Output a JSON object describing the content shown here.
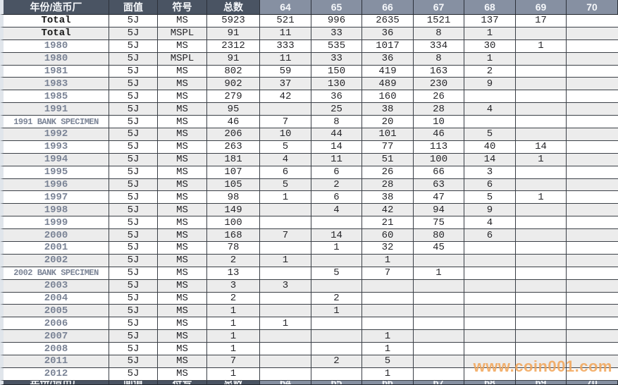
{
  "header": {
    "columns": [
      "年份/造币厂",
      "面值",
      "符号",
      "总数",
      "64",
      "65",
      "66",
      "67",
      "68",
      "69",
      "70"
    ]
  },
  "rows": [
    {
      "kind": "total",
      "cells": [
        "Total",
        "5J",
        "MS",
        "5923",
        "521",
        "996",
        "2635",
        "1521",
        "137",
        "17",
        ""
      ]
    },
    {
      "kind": "total",
      "cells": [
        "Total",
        "5J",
        "MSPL",
        "91",
        "11",
        "33",
        "36",
        "8",
        "1",
        "",
        ""
      ]
    },
    {
      "kind": "year",
      "cells": [
        "1980",
        "5J",
        "MS",
        "2312",
        "333",
        "535",
        "1017",
        "334",
        "30",
        "1",
        ""
      ]
    },
    {
      "kind": "year",
      "cells": [
        "1980",
        "5J",
        "MSPL",
        "91",
        "11",
        "33",
        "36",
        "8",
        "1",
        "",
        ""
      ]
    },
    {
      "kind": "year",
      "cells": [
        "1981",
        "5J",
        "MS",
        "802",
        "59",
        "150",
        "419",
        "163",
        "2",
        "",
        ""
      ]
    },
    {
      "kind": "year",
      "cells": [
        "1983",
        "5J",
        "MS",
        "902",
        "37",
        "130",
        "489",
        "230",
        "9",
        "",
        ""
      ]
    },
    {
      "kind": "year",
      "cells": [
        "1985",
        "5J",
        "MS",
        "279",
        "42",
        "36",
        "160",
        "26",
        "",
        "",
        ""
      ]
    },
    {
      "kind": "year",
      "cells": [
        "1991",
        "5J",
        "MS",
        "95",
        "",
        "25",
        "38",
        "28",
        "4",
        "",
        ""
      ]
    },
    {
      "kind": "year",
      "cells": [
        "1991 BANK SPECIMEN",
        "5J",
        "MS",
        "46",
        "7",
        "8",
        "20",
        "10",
        "",
        "",
        ""
      ]
    },
    {
      "kind": "year",
      "cells": [
        "1992",
        "5J",
        "MS",
        "206",
        "10",
        "44",
        "101",
        "46",
        "5",
        "",
        ""
      ]
    },
    {
      "kind": "year",
      "cells": [
        "1993",
        "5J",
        "MS",
        "263",
        "5",
        "14",
        "77",
        "113",
        "40",
        "14",
        ""
      ]
    },
    {
      "kind": "year",
      "cells": [
        "1994",
        "5J",
        "MS",
        "181",
        "4",
        "11",
        "51",
        "100",
        "14",
        "1",
        ""
      ]
    },
    {
      "kind": "year",
      "cells": [
        "1995",
        "5J",
        "MS",
        "107",
        "6",
        "6",
        "26",
        "66",
        "3",
        "",
        ""
      ]
    },
    {
      "kind": "year",
      "cells": [
        "1996",
        "5J",
        "MS",
        "105",
        "5",
        "2",
        "28",
        "63",
        "6",
        "",
        ""
      ]
    },
    {
      "kind": "year",
      "cells": [
        "1997",
        "5J",
        "MS",
        "98",
        "1",
        "6",
        "38",
        "47",
        "5",
        "1",
        ""
      ]
    },
    {
      "kind": "year",
      "cells": [
        "1998",
        "5J",
        "MS",
        "149",
        "",
        "4",
        "42",
        "94",
        "9",
        "",
        ""
      ]
    },
    {
      "kind": "year",
      "cells": [
        "1999",
        "5J",
        "MS",
        "100",
        "",
        "",
        "21",
        "75",
        "4",
        "",
        ""
      ]
    },
    {
      "kind": "year",
      "cells": [
        "2000",
        "5J",
        "MS",
        "168",
        "7",
        "14",
        "60",
        "80",
        "6",
        "",
        ""
      ]
    },
    {
      "kind": "year",
      "cells": [
        "2001",
        "5J",
        "MS",
        "78",
        "",
        "1",
        "32",
        "45",
        "",
        "",
        ""
      ]
    },
    {
      "kind": "year",
      "cells": [
        "2002",
        "5J",
        "MS",
        "2",
        "1",
        "",
        "1",
        "",
        "",
        "",
        ""
      ]
    },
    {
      "kind": "year",
      "cells": [
        "2002 BANK SPECIMEN",
        "5J",
        "MS",
        "13",
        "",
        "5",
        "7",
        "1",
        "",
        "",
        ""
      ]
    },
    {
      "kind": "year",
      "cells": [
        "2003",
        "5J",
        "MS",
        "3",
        "3",
        "",
        "",
        "",
        "",
        "",
        ""
      ]
    },
    {
      "kind": "year",
      "cells": [
        "2004",
        "5J",
        "MS",
        "2",
        "",
        "2",
        "",
        "",
        "",
        "",
        ""
      ]
    },
    {
      "kind": "year",
      "cells": [
        "2005",
        "5J",
        "MS",
        "1",
        "",
        "1",
        "",
        "",
        "",
        "",
        ""
      ]
    },
    {
      "kind": "year",
      "cells": [
        "2006",
        "5J",
        "MS",
        "1",
        "1",
        "",
        "",
        "",
        "",
        "",
        ""
      ]
    },
    {
      "kind": "year",
      "cells": [
        "2007",
        "5J",
        "MS",
        "1",
        "",
        "",
        "1",
        "",
        "",
        "",
        ""
      ]
    },
    {
      "kind": "year",
      "cells": [
        "2008",
        "5J",
        "MS",
        "1",
        "",
        "",
        "1",
        "",
        "",
        "",
        ""
      ]
    },
    {
      "kind": "year",
      "cells": [
        "2011",
        "5J",
        "MS",
        "7",
        "",
        "2",
        "5",
        "",
        "",
        "",
        ""
      ]
    },
    {
      "kind": "year",
      "cells": [
        "2012",
        "5J",
        "MS",
        "1",
        "",
        "",
        "1",
        "",
        "",
        "",
        ""
      ]
    }
  ],
  "watermark": {
    "text": "www.coin001.com"
  },
  "colors": {
    "header_dark": "#4a5463",
    "header_light": "#8690a2",
    "alt_row": "#ececec",
    "year_text": "#7b8496",
    "watermark": "#f3a558"
  }
}
